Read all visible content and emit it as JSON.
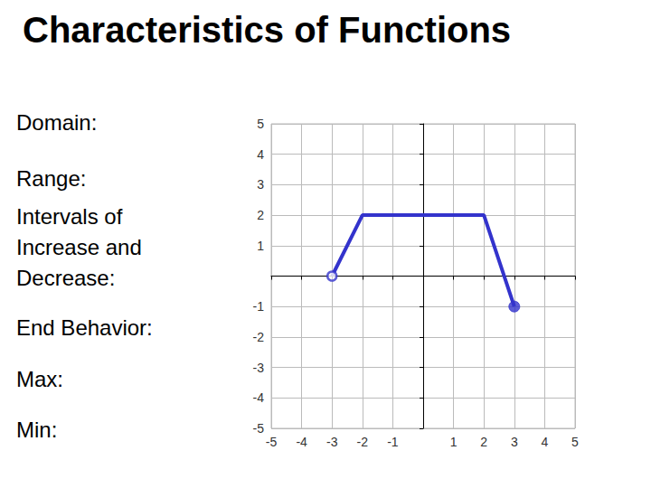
{
  "chart_data": {
    "type": "line",
    "title": "Characteristics of Functions",
    "annotations": [
      "Domain:",
      "Range:",
      "Intervals of Increase and Decrease:",
      "End Behavior:",
      "Max:",
      "Min:"
    ],
    "series": [
      {
        "type": "line",
        "marker": "none",
        "color": "#3333cc",
        "x": [
          -3,
          -2,
          2,
          3
        ],
        "values": [
          0,
          2,
          2,
          -1
        ]
      },
      {
        "type": "scatter",
        "marker": "open-circle",
        "color": "#3333cc",
        "x": [
          -3
        ],
        "values": [
          0
        ]
      },
      {
        "type": "scatter",
        "marker": "circle",
        "color": "#3333cc",
        "x": [
          3
        ],
        "values": [
          -1
        ]
      }
    ],
    "xlim": [
      -5,
      5
    ],
    "ylim": [
      -5,
      5
    ],
    "xticks": [
      -5,
      -4,
      -3,
      -2,
      -1,
      1,
      2,
      3,
      4,
      5
    ],
    "yticks": [
      -5,
      -4,
      -3,
      -2,
      -1,
      1,
      2,
      3,
      4,
      5
    ],
    "grid": true
  }
}
